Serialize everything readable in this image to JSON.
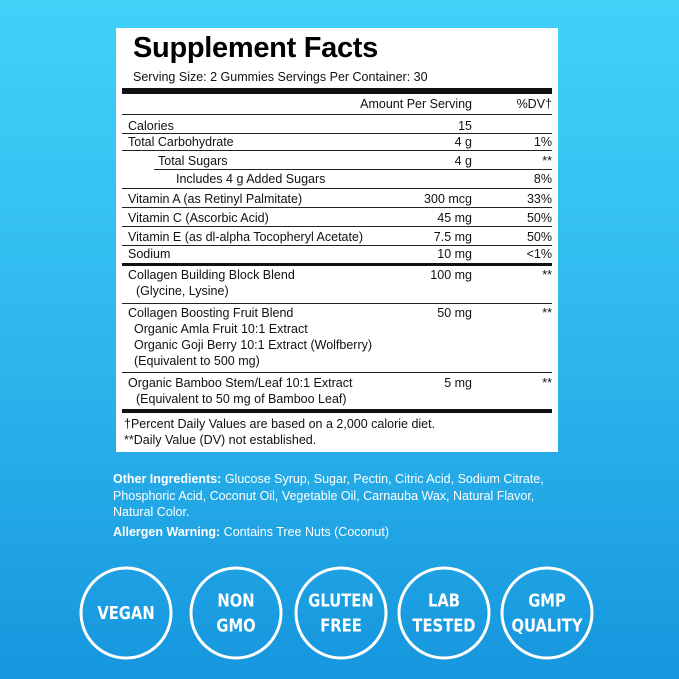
{
  "header": {
    "title": "Supplement Facts",
    "serving": "Serving Size: 2 Gummies   Servings Per Container: 30"
  },
  "table": {
    "columns": [
      "Amount Per Serving",
      "%DV†"
    ],
    "rows": [
      {
        "lines": [
          "Calories"
        ],
        "amount": "15"
      },
      {
        "lines": [
          "Total Carbohydrate"
        ],
        "amount": "4 g",
        "dv": "1%"
      },
      {
        "lines": [
          "Total Sugars"
        ],
        "amount": "4 g",
        "dv": "**"
      },
      {
        "lines": [
          "Includes 4 g Added Sugars"
        ],
        "dv": "8%"
      },
      {
        "lines": [
          "Vitamin A (as Retinyl Palmitate)"
        ],
        "amount": "300 mcg",
        "dv": "33%"
      },
      {
        "lines": [
          "Vitamin C (Ascorbic Acid)"
        ],
        "amount": "45 mg",
        "dv": "50%"
      },
      {
        "lines": [
          "Vitamin E (as dl-alpha Tocopheryl Acetate)"
        ],
        "amount": "7.5 mg",
        "dv": "50%"
      },
      {
        "lines": [
          "Sodium"
        ],
        "amount": "10 mg",
        "dv": "<1%"
      },
      {
        "lines": [
          "Collagen Building Block Blend",
          "(Glycine, Lysine)"
        ],
        "amount": "100 mg",
        "dv": "**"
      },
      {
        "lines": [
          "Collagen Boosting Fruit Blend",
          "Organic Amla Fruit 10:1 Extract",
          "Organic Goji Berry 10:1 Extract (Wolfberry)",
          "(Equivalent to 500 mg)"
        ],
        "amount": "50 mg",
        "dv": "**"
      },
      {
        "lines": [
          "Organic Bamboo Stem/Leaf 10:1 Extract",
          "(Equivalent to 50 mg of Bamboo Leaf)"
        ],
        "amount": "5 mg",
        "dv": "**"
      }
    ]
  },
  "footnotes": [
    "†Percent Daily Values are based on a 2,000 calorie diet.",
    "**Daily Value (DV) not established."
  ],
  "other_ingredients": {
    "label": "Other Ingredients:",
    "text": "Glucose Syrup, Sugar, Pectin, Citric Acid, Sodium Citrate, Phosphoric Acid, Coconut Oil, Vegetable Oil, Carnauba Wax, Natural Flavor, Natural Color."
  },
  "allergen": {
    "label": "Allergen Warning:",
    "text": "Contains Tree Nuts (Coconut)"
  },
  "badges": [
    [
      "VEGAN"
    ],
    [
      "NON",
      "GMO"
    ],
    [
      "GLUTEN",
      "FREE"
    ],
    [
      "LAB",
      "TESTED"
    ],
    [
      "GMP",
      "QUALITY"
    ]
  ]
}
